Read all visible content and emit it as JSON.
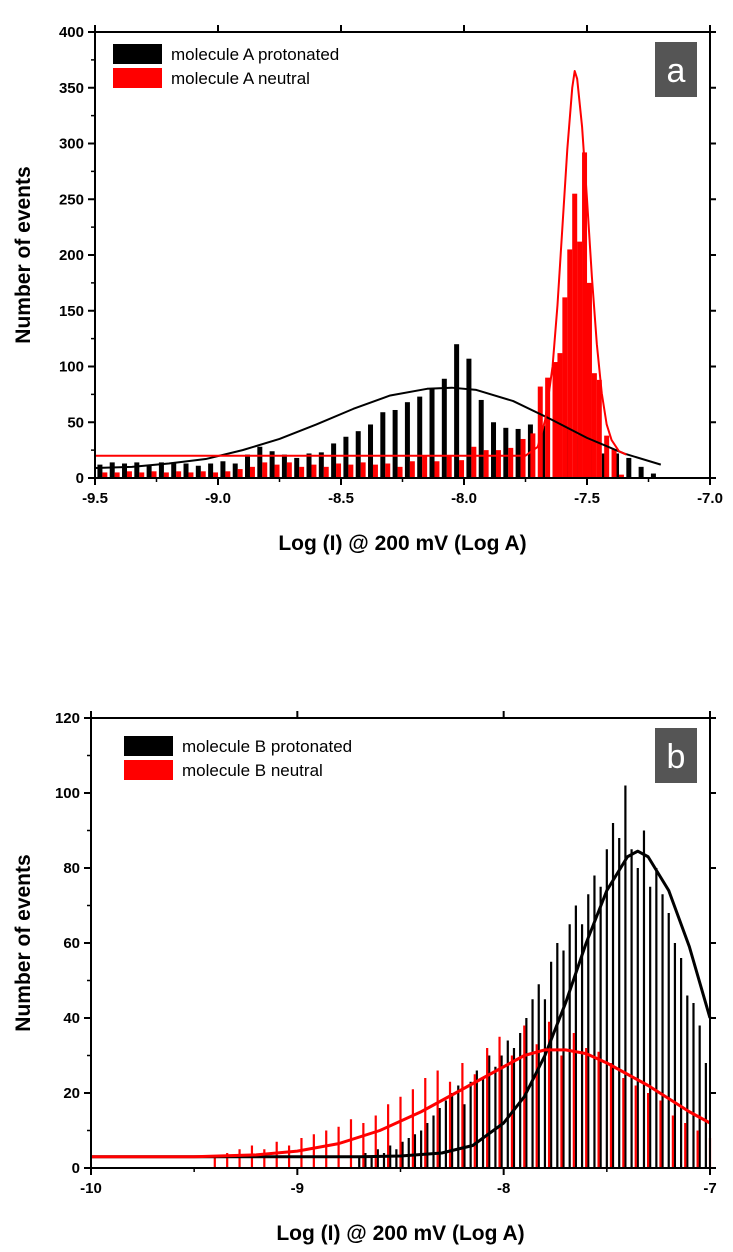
{
  "chart_data": [
    {
      "id": "a",
      "type": "bar",
      "panel_label": "a",
      "xlabel": "Log (I) @ 200 mV (Log A)",
      "ylabel": "Number of events",
      "xlim": [
        -9.5,
        -7.0
      ],
      "ylim": [
        0,
        400
      ],
      "x_ticks": [
        -9.5,
        -9.0,
        -8.5,
        -8.0,
        -7.5,
        -7.0
      ],
      "x_tick_labels": [
        "-9.5",
        "-9.0",
        "-8.5",
        "-8.0",
        "-7.5",
        "-7.0"
      ],
      "y_ticks": [
        0,
        50,
        100,
        150,
        200,
        250,
        300,
        350,
        400
      ],
      "y_tick_labels": [
        "0",
        "50",
        "100",
        "150",
        "200",
        "250",
        "300",
        "350",
        "400"
      ],
      "legend_position": "top-left",
      "grid": false,
      "series": [
        {
          "name": "molecule A protonated",
          "color": "#000000",
          "x": [
            -9.48,
            -9.43,
            -9.38,
            -9.33,
            -9.28,
            -9.23,
            -9.18,
            -9.13,
            -9.08,
            -9.03,
            -8.98,
            -8.93,
            -8.88,
            -8.83,
            -8.78,
            -8.73,
            -8.68,
            -8.63,
            -8.58,
            -8.53,
            -8.48,
            -8.43,
            -8.38,
            -8.33,
            -8.28,
            -8.23,
            -8.18,
            -8.13,
            -8.08,
            -8.03,
            -7.98,
            -7.93,
            -7.88,
            -7.83,
            -7.78,
            -7.73,
            -7.68,
            -7.63,
            -7.58,
            -7.53,
            -7.48,
            -7.43,
            -7.38,
            -7.33,
            -7.28,
            -7.23
          ],
          "values": [
            12,
            14,
            13,
            14,
            12,
            14,
            14,
            13,
            11,
            13,
            15,
            13,
            21,
            28,
            24,
            21,
            18,
            22,
            23,
            31,
            37,
            42,
            48,
            59,
            61,
            68,
            73,
            80,
            89,
            120,
            107,
            70,
            50,
            45,
            44,
            48,
            47,
            52,
            46,
            38,
            32,
            22,
            22,
            18,
            10,
            4
          ]
        },
        {
          "name": "molecule A neutral",
          "color": "#ff0000",
          "x": [
            -9.46,
            -9.41,
            -9.36,
            -9.31,
            -9.26,
            -9.21,
            -9.16,
            -9.11,
            -9.06,
            -9.01,
            -8.96,
            -8.91,
            -8.86,
            -8.81,
            -8.76,
            -8.71,
            -8.66,
            -8.61,
            -8.56,
            -8.51,
            -8.46,
            -8.41,
            -8.36,
            -8.31,
            -8.26,
            -8.21,
            -8.16,
            -8.11,
            -8.06,
            -8.01,
            -7.96,
            -7.91,
            -7.86,
            -7.81,
            -7.76,
            -7.72,
            -7.69,
            -7.66,
            -7.63,
            -7.61,
            -7.59,
            -7.57,
            -7.55,
            -7.53,
            -7.51,
            -7.49,
            -7.47,
            -7.45,
            -7.42,
            -7.39,
            -7.36
          ],
          "values": [
            5,
            5,
            6,
            5,
            6,
            5,
            6,
            5,
            6,
            5,
            6,
            8,
            10,
            14,
            12,
            14,
            10,
            12,
            10,
            13,
            12,
            14,
            12,
            13,
            10,
            15,
            20,
            15,
            20,
            16,
            28,
            25,
            25,
            27,
            35,
            40,
            82,
            90,
            104,
            112,
            162,
            205,
            255,
            212,
            292,
            175,
            94,
            88,
            38,
            26,
            3
          ]
        },
        {
          "name": "",
          "kind": "fit",
          "color": "#000000",
          "x": [
            -9.5,
            -9.35,
            -9.2,
            -9.05,
            -8.9,
            -8.75,
            -8.6,
            -8.45,
            -8.3,
            -8.15,
            -8.05,
            -7.95,
            -7.8,
            -7.65,
            -7.5,
            -7.35,
            -7.2
          ],
          "values": [
            9,
            10,
            13,
            17,
            25,
            35,
            48,
            62,
            74,
            80,
            81,
            79,
            69,
            53,
            36,
            22,
            12
          ]
        },
        {
          "name": "",
          "kind": "fit",
          "color": "#ff0000",
          "x": [
            -9.5,
            -7.75,
            -7.7,
            -7.67,
            -7.64,
            -7.62,
            -7.6,
            -7.58,
            -7.56,
            -7.55,
            -7.54,
            -7.52,
            -7.5,
            -7.48,
            -7.46,
            -7.44,
            -7.42,
            -7.4,
            -7.37,
            -7.34
          ],
          "values": [
            20,
            20,
            28,
            52,
            100,
            155,
            225,
            295,
            350,
            365,
            358,
            315,
            250,
            180,
            120,
            76,
            48,
            34,
            24,
            21
          ]
        }
      ]
    },
    {
      "id": "b",
      "type": "bar",
      "panel_label": "b",
      "xlabel": "Log (I) @ 200 mV (Log A)",
      "ylabel": "Number of events",
      "xlim": [
        -10,
        -7
      ],
      "ylim": [
        0,
        120
      ],
      "x_ticks": [
        -10,
        -9,
        -8,
        -7
      ],
      "x_tick_labels": [
        "-10",
        "-9",
        "-8",
        "-7"
      ],
      "y_ticks": [
        0,
        20,
        40,
        60,
        80,
        100,
        120
      ],
      "y_tick_labels": [
        "0",
        "20",
        "40",
        "60",
        "80",
        "100",
        "120"
      ],
      "legend_position": "top-left",
      "grid": false,
      "series": [
        {
          "name": "molecule B protonated",
          "color": "#000000",
          "x": [
            -8.7,
            -8.67,
            -8.64,
            -8.61,
            -8.58,
            -8.55,
            -8.52,
            -8.49,
            -8.46,
            -8.43,
            -8.4,
            -8.37,
            -8.34,
            -8.31,
            -8.28,
            -8.25,
            -8.22,
            -8.19,
            -8.16,
            -8.13,
            -8.1,
            -8.07,
            -8.04,
            -8.01,
            -7.98,
            -7.95,
            -7.92,
            -7.89,
            -7.86,
            -7.83,
            -7.8,
            -7.77,
            -7.74,
            -7.71,
            -7.68,
            -7.65,
            -7.62,
            -7.59,
            -7.56,
            -7.53,
            -7.5,
            -7.47,
            -7.44,
            -7.41,
            -7.38,
            -7.35,
            -7.32,
            -7.29,
            -7.26,
            -7.23,
            -7.2,
            -7.17,
            -7.14,
            -7.11,
            -7.08,
            -7.05,
            -7.02
          ],
          "values": [
            3,
            4,
            3,
            5,
            4,
            6,
            5,
            7,
            8,
            9,
            10,
            12,
            14,
            16,
            18,
            20,
            22,
            17,
            23,
            26,
            24,
            30,
            27,
            30,
            34,
            32,
            36,
            40,
            45,
            49,
            45,
            55,
            60,
            58,
            65,
            70,
            65,
            73,
            78,
            75,
            85,
            92,
            88,
            102,
            85,
            80,
            90,
            75,
            80,
            73,
            68,
            60,
            56,
            46,
            44,
            38,
            28
          ]
        },
        {
          "name": "molecule B neutral",
          "color": "#ff0000",
          "x": [
            -9.4,
            -9.34,
            -9.28,
            -9.22,
            -9.16,
            -9.1,
            -9.04,
            -8.98,
            -8.92,
            -8.86,
            -8.8,
            -8.74,
            -8.68,
            -8.62,
            -8.56,
            -8.5,
            -8.44,
            -8.38,
            -8.32,
            -8.26,
            -8.2,
            -8.14,
            -8.08,
            -8.02,
            -7.96,
            -7.9,
            -7.84,
            -7.78,
            -7.72,
            -7.66,
            -7.6,
            -7.54,
            -7.48,
            -7.42,
            -7.36,
            -7.3,
            -7.24,
            -7.18,
            -7.12,
            -7.06,
            -7.0
          ],
          "values": [
            3,
            4,
            5,
            6,
            5,
            7,
            6,
            8,
            9,
            10,
            11,
            13,
            12,
            14,
            17,
            19,
            21,
            24,
            26,
            23,
            28,
            25,
            32,
            35,
            30,
            38,
            33,
            39,
            30,
            36,
            32,
            31,
            28,
            24,
            22,
            20,
            18,
            14,
            12,
            10,
            8
          ]
        },
        {
          "name": "",
          "kind": "fit",
          "color": "#000000",
          "x": [
            -10,
            -9.5,
            -9.0,
            -8.7,
            -8.5,
            -8.3,
            -8.15,
            -8.0,
            -7.9,
            -7.8,
            -7.7,
            -7.6,
            -7.5,
            -7.4,
            -7.35,
            -7.3,
            -7.2,
            -7.1,
            -7.0
          ],
          "values": [
            3,
            3,
            3,
            3,
            3.2,
            4,
            6,
            12,
            19,
            30,
            44,
            60,
            74,
            83,
            84.5,
            83,
            74,
            59,
            40
          ]
        },
        {
          "name": "",
          "kind": "fit",
          "color": "#ff0000",
          "x": [
            -10,
            -9.5,
            -9.2,
            -9.0,
            -8.8,
            -8.6,
            -8.4,
            -8.2,
            -8.0,
            -7.9,
            -7.8,
            -7.7,
            -7.6,
            -7.5,
            -7.4,
            -7.3,
            -7.2,
            -7.1,
            -7.0
          ],
          "values": [
            3,
            3,
            3.5,
            4.5,
            6.5,
            10,
            15,
            21,
            27,
            30,
            31.5,
            31.5,
            30.5,
            28,
            25,
            22,
            18.5,
            15,
            12
          ]
        }
      ]
    }
  ]
}
